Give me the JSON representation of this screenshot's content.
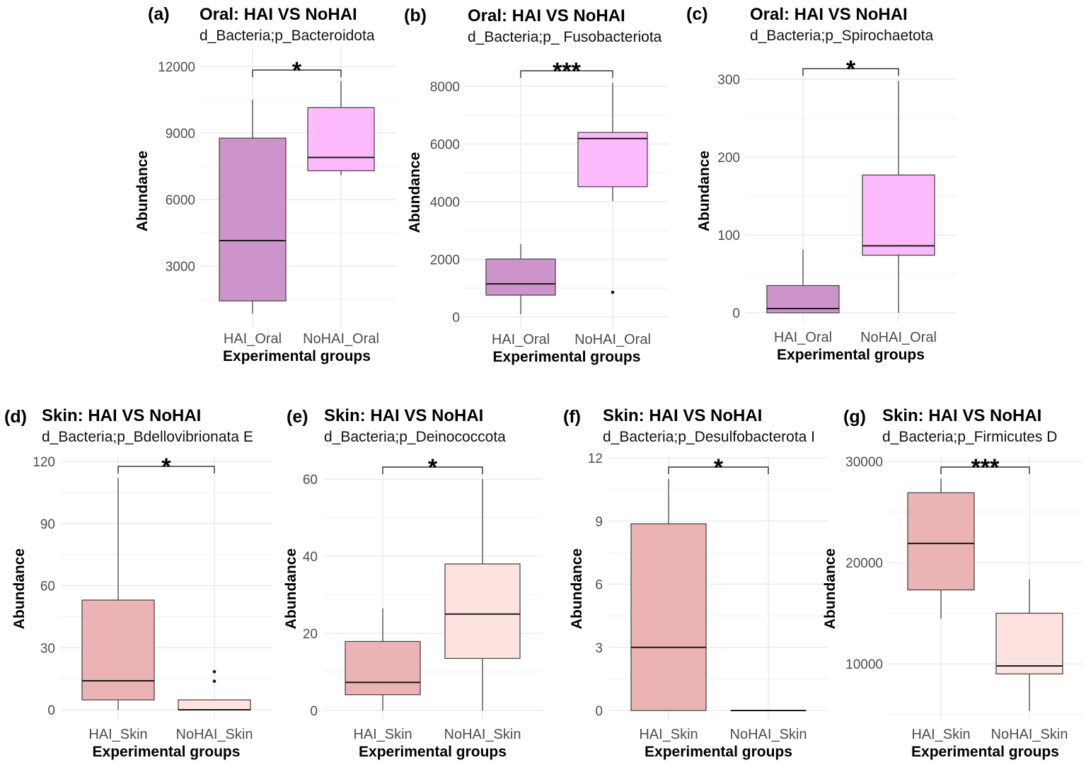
{
  "figure": {
    "colors": {
      "HAI_Oral": "#CD94CC",
      "NoHAI_Oral": "#FDBAFD",
      "HAI_Skin": "#EBB3B3",
      "NoHAI_Skin": "#FEE2E0"
    }
  },
  "chart_data": [
    {
      "id": "a",
      "type": "box",
      "letter": "(a)",
      "title": "Oral: HAI VS NoHAI",
      "subtitle": "d_Bacteria;p_Bacteroidota",
      "xlabel": "Experimental groups",
      "ylabel": "Abundance",
      "yticks": [
        3000,
        6000,
        9000,
        12000
      ],
      "yminor": [
        1500,
        4500,
        7500,
        10500
      ],
      "categories": [
        "HAI_Oral",
        "NoHAI_Oral"
      ],
      "boxes": [
        {
          "group": "HAI_Oral",
          "whisker_low": 860,
          "q1": 1430,
          "median": 4150,
          "q3": 8770,
          "whisker_high": 10500,
          "outliers": []
        },
        {
          "group": "NoHAI_Oral",
          "whisker_low": 7100,
          "q1": 7300,
          "median": 7900,
          "q3": 10150,
          "whisker_high": 11350,
          "outliers": []
        }
      ],
      "significance": "*"
    },
    {
      "id": "b",
      "type": "box",
      "letter": "(b)",
      "title": "Oral: HAI VS NoHAI",
      "subtitle": "d_Bacteria;p_ Fusobacteriota",
      "xlabel": "Experimental groups",
      "ylabel": "Abundance",
      "yticks": [
        0,
        2000,
        4000,
        6000,
        8000
      ],
      "yminor": [
        1000,
        3000,
        5000,
        7000
      ],
      "categories": [
        "HAI_Oral",
        "NoHAI_Oral"
      ],
      "boxes": [
        {
          "group": "HAI_Oral",
          "whisker_low": 100,
          "q1": 760,
          "median": 1150,
          "q3": 2010,
          "whisker_high": 2530,
          "outliers": []
        },
        {
          "group": "NoHAI_Oral",
          "whisker_low": 4020,
          "q1": 4520,
          "median": 6190,
          "q3": 6400,
          "whisker_high": 8120,
          "outliers": [
            860
          ]
        }
      ],
      "significance": "***"
    },
    {
      "id": "c",
      "type": "box",
      "letter": "(c)",
      "title": "Oral: HAI VS NoHAI",
      "subtitle": "d_Bacteria;p_Spirochaetota",
      "xlabel": "Experimental groups",
      "ylabel": "Abundance",
      "yticks": [
        0,
        100,
        200,
        300
      ],
      "yminor": [
        50,
        150,
        250
      ],
      "categories": [
        "HAI_Oral",
        "NoHAI_Oral"
      ],
      "boxes": [
        {
          "group": "HAI_Oral",
          "whisker_low": 0,
          "q1": 0,
          "median": 5.5,
          "q3": 35,
          "whisker_high": 81,
          "outliers": []
        },
        {
          "group": "NoHAI_Oral",
          "whisker_low": 0,
          "q1": 74,
          "median": 86,
          "q3": 177,
          "whisker_high": 298,
          "outliers": []
        }
      ],
      "significance": "*"
    },
    {
      "id": "d",
      "type": "box",
      "letter": "(d)",
      "title": "Skin: HAI VS NoHAI",
      "subtitle": "d_Bacteria;p_Bdellovibrionata E",
      "xlabel": "Experimental groups",
      "ylabel": "Abundance",
      "yticks": [
        0,
        30,
        60,
        90,
        120
      ],
      "yminor": [
        15,
        45,
        75,
        105
      ],
      "categories": [
        "HAI_Skin",
        "NoHAI_Skin"
      ],
      "boxes": [
        {
          "group": "HAI_Skin",
          "whisker_low": 0,
          "q1": 4.8,
          "median": 14,
          "q3": 53,
          "whisker_high": 112,
          "outliers": []
        },
        {
          "group": "NoHAI_Skin",
          "whisker_low": 0,
          "q1": 0,
          "median": 0,
          "q3": 4.8,
          "whisker_high": 4.8,
          "outliers": [
            13.8,
            18.4
          ]
        }
      ],
      "significance": "*"
    },
    {
      "id": "e",
      "type": "box",
      "letter": "(e)",
      "title": "Skin: HAI VS NoHAI",
      "subtitle": "d_Bacteria;p_Deinococcota",
      "xlabel": "Experimental groups",
      "ylabel": "Abundance",
      "yticks": [
        0,
        20,
        40,
        60
      ],
      "yminor": [
        10,
        30,
        50
      ],
      "categories": [
        "HAI_Skin",
        "NoHAI_Skin"
      ],
      "boxes": [
        {
          "group": "HAI_Skin",
          "whisker_low": 0,
          "q1": 4.1,
          "median": 7.3,
          "q3": 17.9,
          "whisker_high": 26.5,
          "outliers": []
        },
        {
          "group": "NoHAI_Skin",
          "whisker_low": 0,
          "q1": 13.5,
          "median": 25,
          "q3": 38,
          "whisker_high": 60,
          "outliers": []
        }
      ],
      "significance": "*"
    },
    {
      "id": "f",
      "type": "box",
      "letter": "(f)",
      "title": "Skin: HAI VS NoHAI",
      "subtitle": "d_Bacteria;p_Desulfobacterota I",
      "xlabel": "Experimental groups",
      "ylabel": "Abundance",
      "yticks": [
        0,
        3,
        6,
        9,
        12
      ],
      "yminor": [
        1.5,
        4.5,
        7.5,
        10.5
      ],
      "categories": [
        "HAI_Skin",
        "NoHAI_Skin"
      ],
      "boxes": [
        {
          "group": "HAI_Skin",
          "whisker_low": 0,
          "q1": 0,
          "median": 3,
          "q3": 8.87,
          "whisker_high": 11,
          "outliers": []
        },
        {
          "group": "NoHAI_Skin",
          "whisker_low": 0,
          "q1": 0,
          "median": 0,
          "q3": 0,
          "whisker_high": 0,
          "outliers": []
        }
      ],
      "significance": "*"
    },
    {
      "id": "g",
      "type": "box",
      "letter": "(g)",
      "title": "Skin: HAI VS NoHAI",
      "subtitle": "d_Bacteria;p_Firmicutes D",
      "xlabel": "Experimental groups",
      "ylabel": "Abundance",
      "yticks": [
        10000,
        20000,
        30000
      ],
      "yminor": [
        5000,
        15000,
        25000
      ],
      "categories": [
        "HAI_Skin",
        "NoHAI_Skin"
      ],
      "boxes": [
        {
          "group": "HAI_Skin",
          "whisker_low": 14460,
          "q1": 17300,
          "median": 21900,
          "q3": 26900,
          "whisker_high": 28300,
          "outliers": []
        },
        {
          "group": "NoHAI_Skin",
          "whisker_low": 5350,
          "q1": 9000,
          "median": 9790,
          "q3": 15000,
          "whisker_high": 18360,
          "outliers": []
        }
      ],
      "significance": "***"
    }
  ]
}
